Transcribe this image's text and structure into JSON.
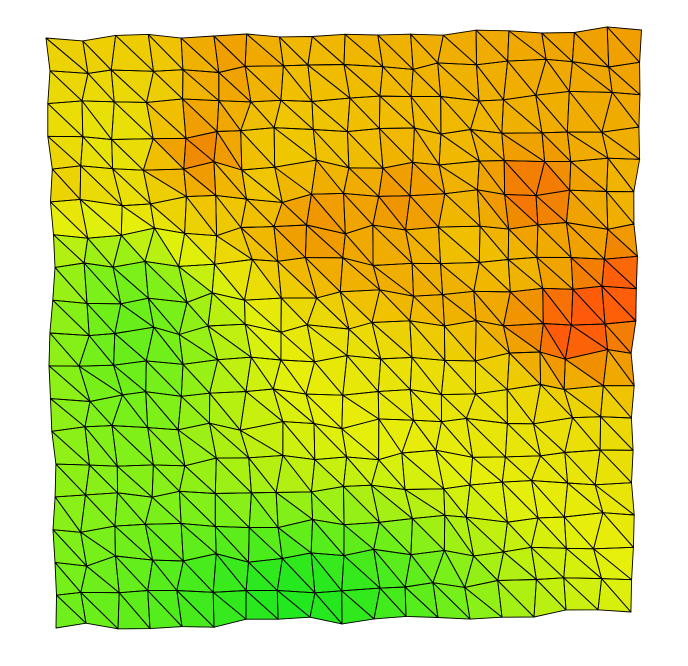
{
  "figure": {
    "kind": "triangulated surface mesh colored by scalar field",
    "grid_rows": 18,
    "grid_cols": 18,
    "colormap": [
      "#22e81e",
      "#7af01a",
      "#e6f00a",
      "#f0c000",
      "#f08a00",
      "#ff5a0a"
    ],
    "edge_color": "#000000",
    "background": "#ffffff"
  }
}
